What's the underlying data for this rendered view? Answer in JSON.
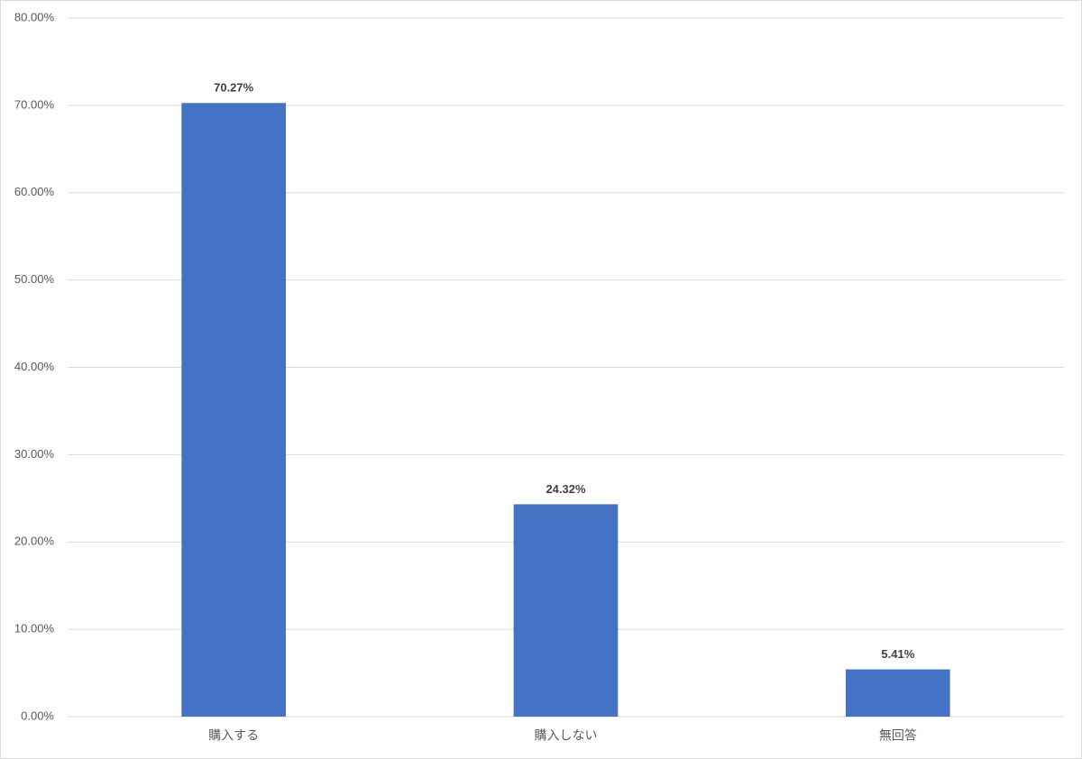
{
  "chart_data": {
    "type": "bar",
    "categories": [
      "購入する",
      "購入しない",
      "無回答"
    ],
    "values": [
      70.27,
      24.32,
      5.41
    ],
    "value_labels": [
      "70.27%",
      "24.32%",
      "5.41%"
    ],
    "color": "#4472c4",
    "ylim": [
      0,
      80
    ],
    "yticks": [
      {
        "value": 0,
        "label": "0.00%"
      },
      {
        "value": 10,
        "label": "10.00%"
      },
      {
        "value": 20,
        "label": "20.00%"
      },
      {
        "value": 30,
        "label": "30.00%"
      },
      {
        "value": 40,
        "label": "40.00%"
      },
      {
        "value": 50,
        "label": "50.00%"
      },
      {
        "value": 60,
        "label": "60.00%"
      },
      {
        "value": 70,
        "label": "70.00%"
      },
      {
        "value": 80,
        "label": "80.00%"
      }
    ],
    "grid": true
  }
}
